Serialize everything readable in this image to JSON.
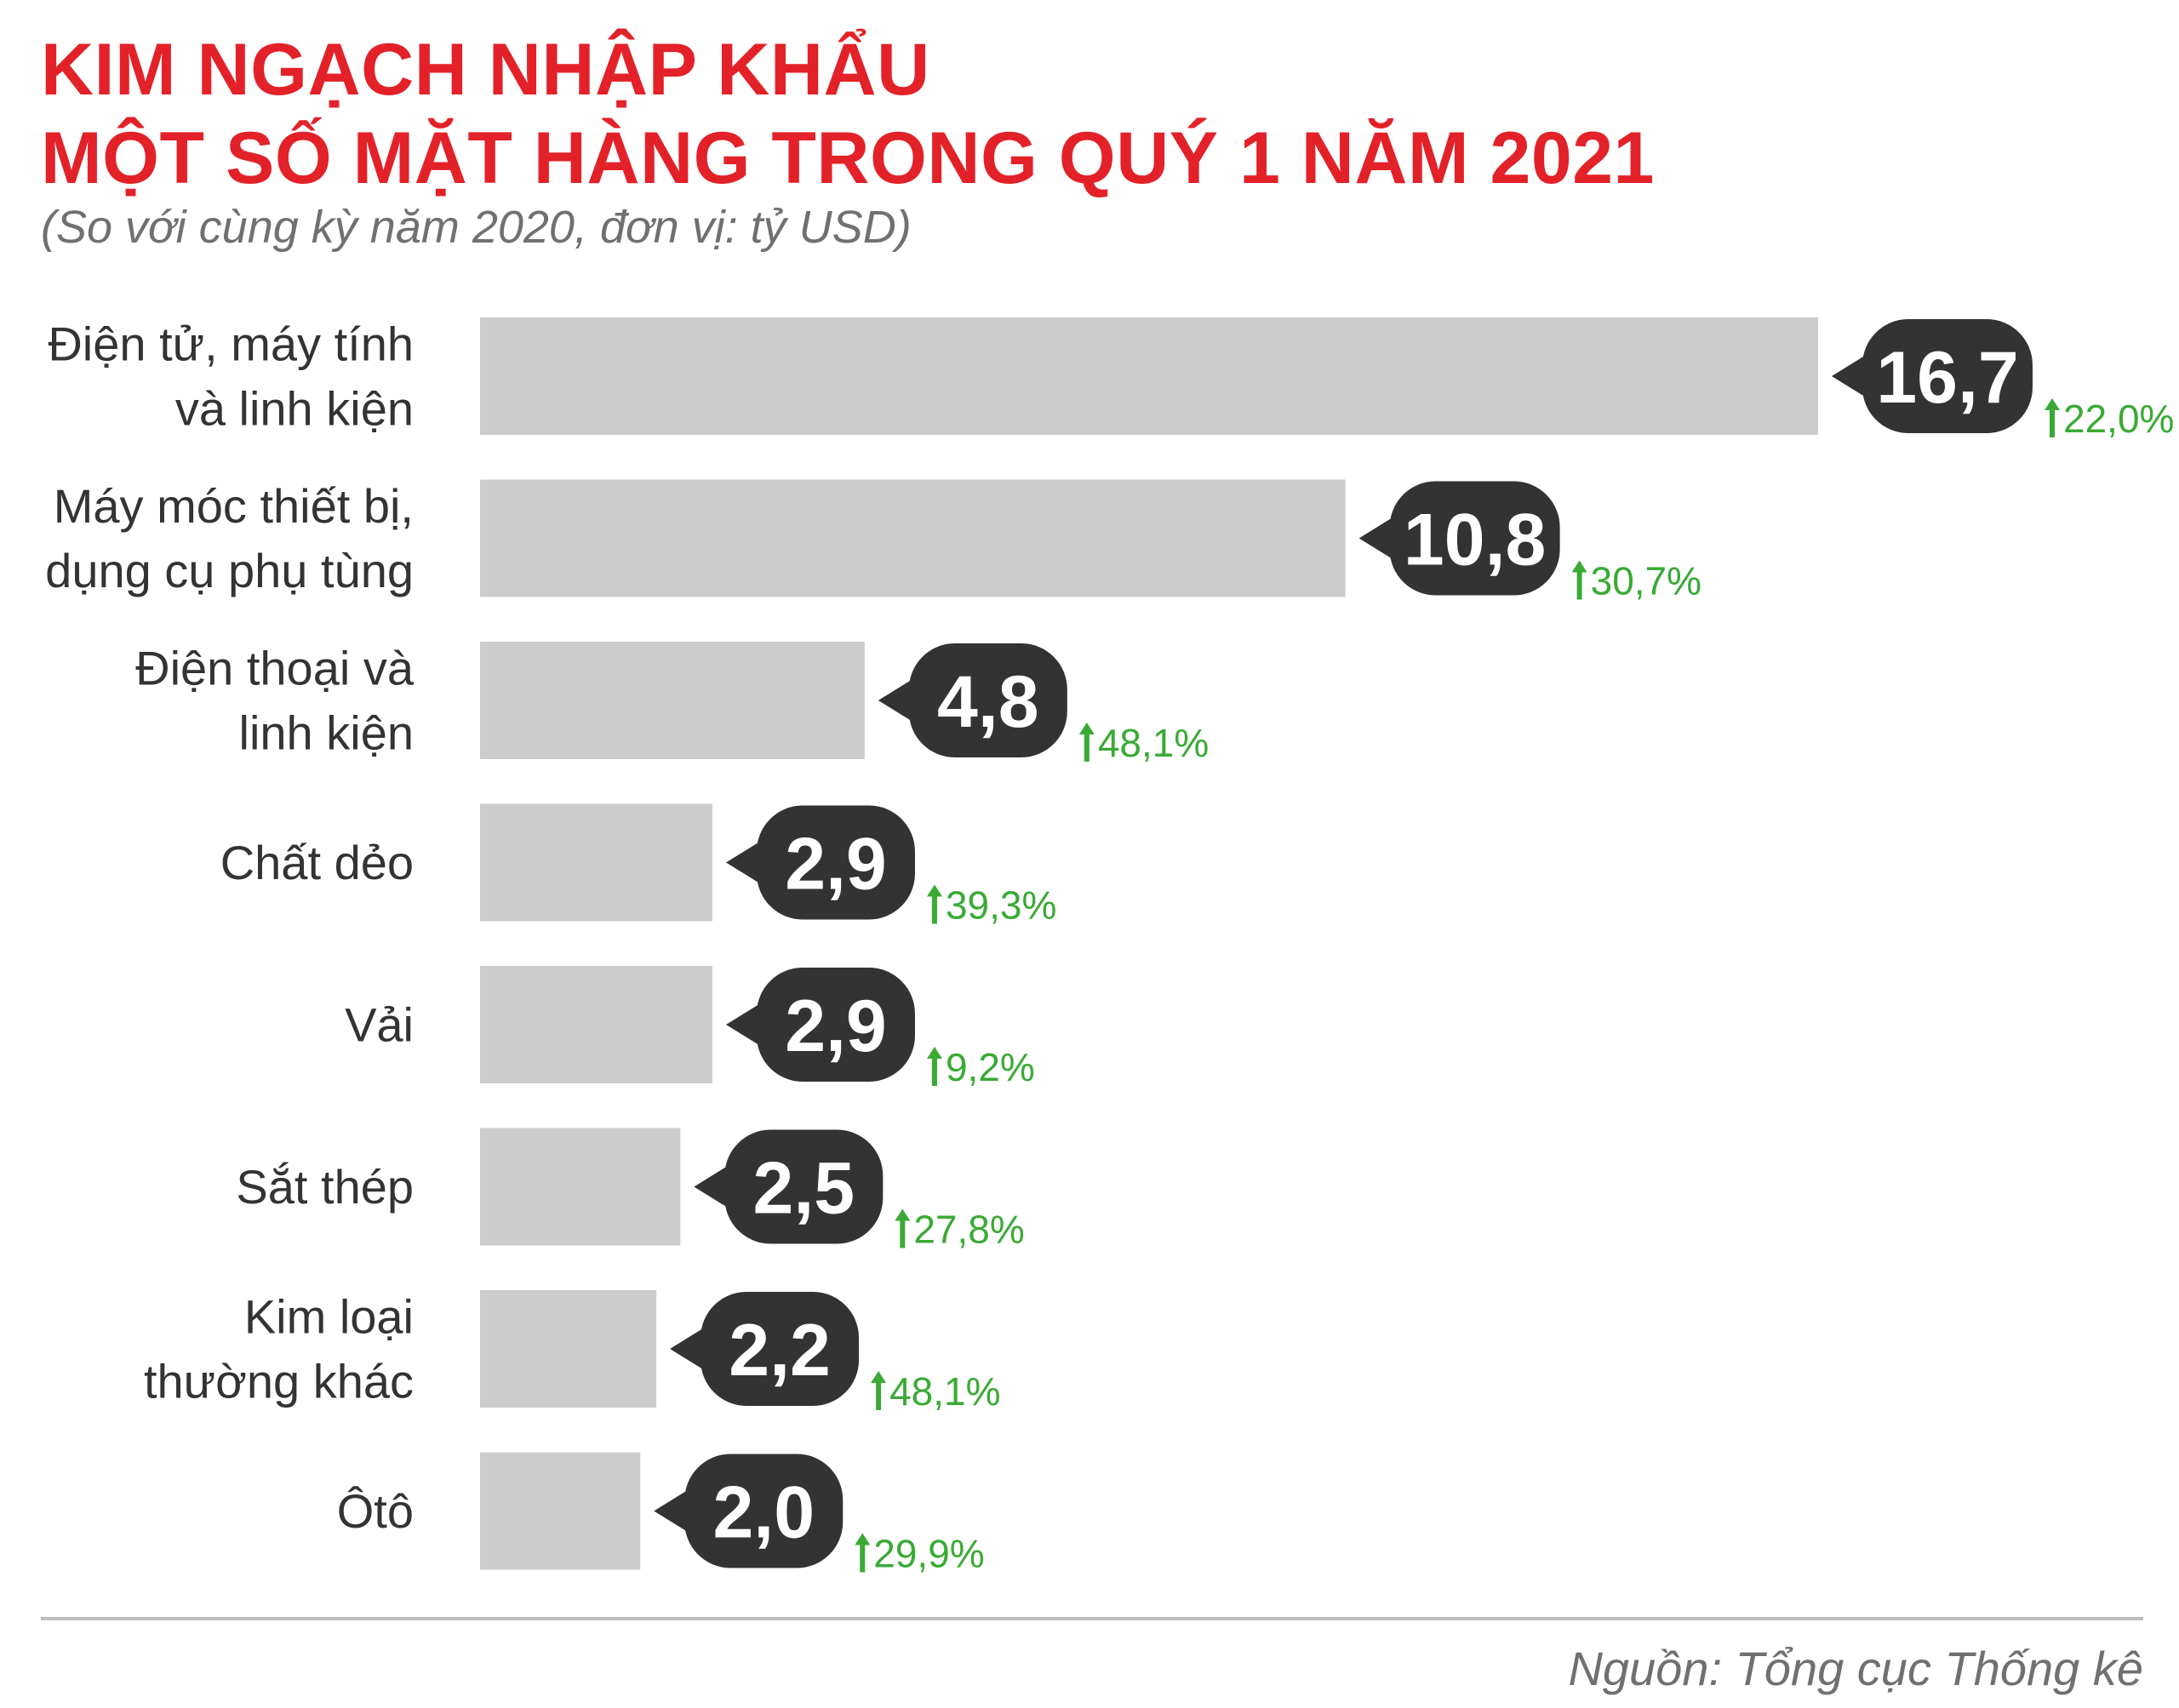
{
  "title_lines": [
    "KIM NGẠCH NHẬP KHẨU",
    "MỘT SỐ MẶT HÀNG TRONG QUÝ 1 NĂM 2021"
  ],
  "subtitle": "(So với cùng kỳ năm 2020, đơn vị: tỷ USD)",
  "source": "Nguồn: Tổng cục Thống kê",
  "colors": {
    "title": "#e32128",
    "bar": "#cccccc",
    "bubble": "#333333",
    "growth": "#3aaa35",
    "text": "#333333"
  },
  "chart_data": {
    "type": "bar",
    "orientation": "horizontal",
    "unit": "tỷ USD",
    "xlim": [
      0,
      16.7
    ],
    "categories": [
      [
        "Điện tử, máy tính",
        "và linh kiện"
      ],
      [
        "Máy móc thiết bị,",
        "dụng cụ phụ tùng"
      ],
      [
        "Điện thoại và",
        "linh kiện"
      ],
      [
        "Chất dẻo"
      ],
      [
        "Vải"
      ],
      [
        "Sắt thép"
      ],
      [
        "Kim loại",
        "thường khác"
      ],
      [
        "Ôtô"
      ]
    ],
    "values": [
      16.7,
      10.8,
      4.8,
      2.9,
      2.9,
      2.5,
      2.2,
      2.0
    ],
    "value_labels": [
      "16,7",
      "10,8",
      "4,8",
      "2,9",
      "2,9",
      "2,5",
      "2,2",
      "2,0"
    ],
    "growth_labels": [
      "22,0%",
      "30,7%",
      "48,1%",
      "39,3%",
      "9,2%",
      "27,8%",
      "48,1%",
      "29,9%"
    ],
    "growth_direction": "up",
    "grid": false,
    "legend": "none"
  }
}
